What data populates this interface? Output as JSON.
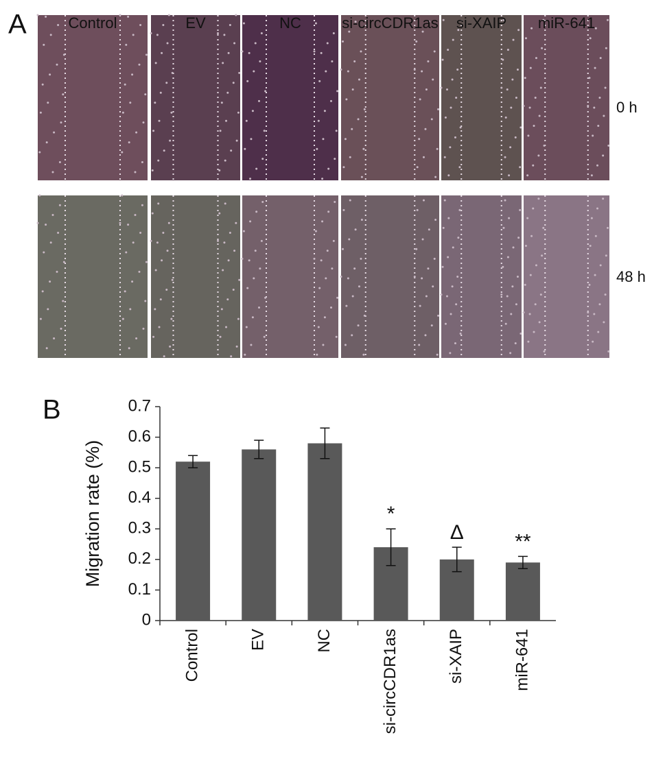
{
  "panel_a": {
    "label": "A",
    "columns": [
      "Control",
      "EV",
      "NC",
      "si-circCDR1as",
      "si-XAIP",
      "miR-641"
    ],
    "rows": [
      "0 h",
      "48 h"
    ]
  },
  "chart_data": {
    "type": "bar",
    "panel_label": "B",
    "y_label": "Migration rate (%)",
    "categories": [
      "Control",
      "EV",
      "NC",
      "si-circCDR1as",
      "si-XAIP",
      "miR-641"
    ],
    "values": [
      0.52,
      0.56,
      0.58,
      0.24,
      0.2,
      0.19
    ],
    "errors": [
      0.02,
      0.03,
      0.05,
      0.06,
      0.04,
      0.02
    ],
    "annotations": [
      null,
      null,
      null,
      "*",
      "Δ",
      "**"
    ],
    "color": "#595959",
    "ylim": [
      0,
      0.7
    ],
    "yticks": [
      0,
      0.1,
      0.2,
      0.3,
      0.4,
      0.5,
      0.6,
      0.7
    ]
  }
}
